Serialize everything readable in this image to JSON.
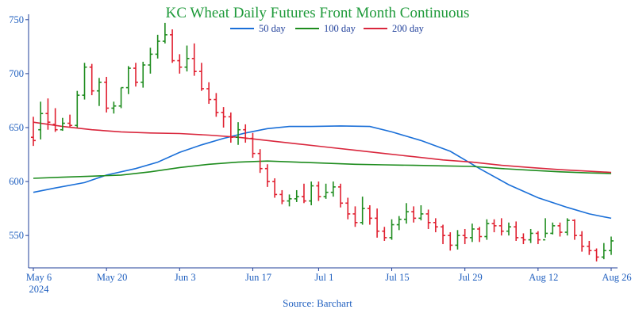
{
  "chart_data": {
    "type": "ohlc",
    "title": "KC Wheat Daily Futures Front Month Continuous",
    "source": "Source: Barchart",
    "title_color": "#1e9a3a",
    "up_color": "#1e8c1e",
    "down_color": "#e02030",
    "ylim": [
      520,
      755
    ],
    "y_ticks": [
      550,
      600,
      650,
      700,
      750
    ],
    "grid": false,
    "legend_position": "top",
    "x_ticks": [
      {
        "idx": 0,
        "label": "May 6",
        "sub": "2024"
      },
      {
        "idx": 10,
        "label": "May 20",
        "sub": ""
      },
      {
        "idx": 20,
        "label": "Jun 3",
        "sub": ""
      },
      {
        "idx": 30,
        "label": "Jun 17",
        "sub": ""
      },
      {
        "idx": 39,
        "label": "Jul 1",
        "sub": ""
      },
      {
        "idx": 49,
        "label": "Jul 15",
        "sub": ""
      },
      {
        "idx": 59,
        "label": "Jul 29",
        "sub": ""
      },
      {
        "idx": 69,
        "label": "Aug 12",
        "sub": ""
      },
      {
        "idx": 79,
        "label": "Aug 26",
        "sub": ""
      }
    ],
    "ohlc": [
      [
        641,
        638,
        660,
        633
      ],
      [
        648,
        663,
        674,
        639
      ],
      [
        663,
        655,
        677,
        648
      ],
      [
        653,
        648,
        668,
        646
      ],
      [
        648,
        654,
        659,
        647
      ],
      [
        654,
        652,
        662,
        650
      ],
      [
        652,
        680,
        684,
        650
      ],
      [
        680,
        706,
        710,
        676
      ],
      [
        706,
        684,
        709,
        680
      ],
      [
        684,
        692,
        696,
        670
      ],
      [
        692,
        668,
        697,
        664
      ],
      [
        668,
        670,
        674,
        663
      ],
      [
        670,
        687,
        687,
        668
      ],
      [
        687,
        705,
        707,
        681
      ],
      [
        705,
        692,
        710,
        688
      ],
      [
        692,
        708,
        711,
        687
      ],
      [
        708,
        718,
        724,
        700
      ],
      [
        718,
        730,
        736,
        714
      ],
      [
        730,
        736,
        747,
        728
      ],
      [
        736,
        712,
        741,
        710
      ],
      [
        712,
        706,
        718,
        700
      ],
      [
        706,
        714,
        726,
        702
      ],
      [
        714,
        702,
        728,
        698
      ],
      [
        702,
        686,
        710,
        684
      ],
      [
        686,
        676,
        692,
        672
      ],
      [
        676,
        664,
        682,
        660
      ],
      [
        664,
        660,
        669,
        650
      ],
      [
        660,
        641,
        664,
        636
      ],
      [
        641,
        648,
        655,
        634
      ],
      [
        648,
        640,
        653,
        636
      ],
      [
        640,
        626,
        645,
        622
      ],
      [
        626,
        612,
        630,
        608
      ],
      [
        612,
        600,
        616,
        595
      ],
      [
        600,
        588,
        603,
        585
      ],
      [
        588,
        582,
        592,
        579
      ],
      [
        582,
        584,
        588,
        577
      ],
      [
        584,
        586,
        592,
        581
      ],
      [
        586,
        582,
        598,
        580
      ],
      [
        582,
        596,
        600,
        578
      ],
      [
        596,
        586,
        600,
        582
      ],
      [
        586,
        590,
        598,
        584
      ],
      [
        590,
        595,
        600,
        586
      ],
      [
        595,
        580,
        598,
        576
      ],
      [
        580,
        570,
        585,
        565
      ],
      [
        570,
        562,
        577,
        558
      ],
      [
        562,
        575,
        586,
        560
      ],
      [
        575,
        566,
        578,
        560
      ],
      [
        566,
        554,
        575,
        548
      ],
      [
        554,
        548,
        558,
        545
      ],
      [
        548,
        560,
        565,
        546
      ],
      [
        560,
        565,
        568,
        555
      ],
      [
        565,
        572,
        580,
        561
      ],
      [
        572,
        566,
        577,
        562
      ],
      [
        566,
        570,
        578,
        564
      ],
      [
        570,
        562,
        574,
        556
      ],
      [
        562,
        558,
        566,
        553
      ],
      [
        558,
        550,
        560,
        542
      ],
      [
        550,
        541,
        553,
        536
      ],
      [
        541,
        550,
        555,
        537
      ],
      [
        550,
        548,
        556,
        542
      ],
      [
        548,
        556,
        561,
        544
      ],
      [
        556,
        549,
        558,
        544
      ],
      [
        549,
        561,
        565,
        546
      ],
      [
        561,
        559,
        565,
        553
      ],
      [
        559,
        554,
        566,
        550
      ],
      [
        554,
        558,
        562,
        550
      ],
      [
        558,
        548,
        563,
        545
      ],
      [
        548,
        546,
        552,
        542
      ],
      [
        546,
        552,
        556,
        543
      ],
      [
        552,
        546,
        554,
        542
      ],
      [
        546,
        552,
        566,
        548
      ],
      [
        552,
        559,
        562,
        551
      ],
      [
        559,
        553,
        562,
        549
      ],
      [
        553,
        564,
        566,
        550
      ],
      [
        564,
        550,
        565,
        546
      ],
      [
        550,
        540,
        554,
        535
      ],
      [
        540,
        536,
        545,
        532
      ],
      [
        536,
        530,
        538,
        526
      ],
      [
        530,
        536,
        543,
        528
      ],
      [
        536,
        545,
        549,
        532
      ]
    ],
    "series": [
      {
        "name": "50 day",
        "color": "#1a6fd8",
        "values": [
          [
            0,
            590
          ],
          [
            3,
            594
          ],
          [
            7,
            599
          ],
          [
            10,
            606
          ],
          [
            14,
            612
          ],
          [
            17,
            618
          ],
          [
            20,
            627
          ],
          [
            23,
            634
          ],
          [
            26,
            640
          ],
          [
            29,
            645
          ],
          [
            32,
            649
          ],
          [
            35,
            651
          ],
          [
            38,
            651
          ],
          [
            42,
            651.5
          ],
          [
            46,
            651
          ],
          [
            49,
            646
          ],
          [
            53,
            638
          ],
          [
            57,
            628
          ],
          [
            61,
            612
          ],
          [
            65,
            597
          ],
          [
            69,
            585
          ],
          [
            73,
            576
          ],
          [
            76,
            570
          ],
          [
            79,
            566
          ]
        ]
      },
      {
        "name": "100 day",
        "color": "#1e8c1e",
        "values": [
          [
            0,
            603
          ],
          [
            4,
            604
          ],
          [
            8,
            605
          ],
          [
            12,
            606
          ],
          [
            16,
            609
          ],
          [
            20,
            613
          ],
          [
            24,
            616
          ],
          [
            28,
            618
          ],
          [
            32,
            619
          ],
          [
            36,
            618
          ],
          [
            40,
            617
          ],
          [
            44,
            616
          ],
          [
            48,
            615.5
          ],
          [
            52,
            615
          ],
          [
            56,
            614.5
          ],
          [
            60,
            614
          ],
          [
            64,
            612
          ],
          [
            68,
            610.5
          ],
          [
            72,
            609
          ],
          [
            76,
            608
          ],
          [
            79,
            607.5
          ]
        ]
      },
      {
        "name": "200 day",
        "color": "#d9273d",
        "values": [
          [
            0,
            655
          ],
          [
            4,
            651
          ],
          [
            8,
            648
          ],
          [
            12,
            646
          ],
          [
            16,
            645
          ],
          [
            20,
            644.5
          ],
          [
            24,
            643
          ],
          [
            28,
            641
          ],
          [
            32,
            638
          ],
          [
            36,
            635
          ],
          [
            40,
            632
          ],
          [
            44,
            629
          ],
          [
            48,
            626
          ],
          [
            52,
            623
          ],
          [
            56,
            620
          ],
          [
            60,
            618
          ],
          [
            64,
            615
          ],
          [
            68,
            613
          ],
          [
            72,
            611
          ],
          [
            76,
            609.5
          ],
          [
            79,
            608.5
          ]
        ]
      }
    ]
  }
}
